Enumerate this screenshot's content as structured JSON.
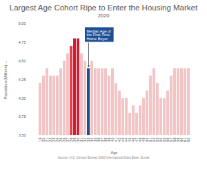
{
  "chart_data": {
    "type": "bar",
    "title": "Largest Age Cohort Ripe to Enter the Housing Market",
    "subtitle": "2020",
    "x_label": "Age",
    "y_label": "Population (Millions)",
    "caption": "Source: U.S. Census Bureau 2020 International Data Base; Zonda",
    "categories": [
      "19",
      "20",
      "21",
      "22",
      "23",
      "24",
      "25",
      "26",
      "27",
      "28",
      "29",
      "30",
      "31",
      "32",
      "33",
      "34",
      "35",
      "36",
      "37",
      "38",
      "39",
      "40",
      "41",
      "42",
      "43",
      "44",
      "45",
      "46",
      "47",
      "48",
      "49",
      "50",
      "51",
      "52",
      "53",
      "54",
      "55",
      "56",
      "57",
      "58",
      "59",
      "60",
      "61",
      "62"
    ],
    "values": [
      4.2,
      4.3,
      4.4,
      4.3,
      4.3,
      4.3,
      4.4,
      4.5,
      4.6,
      4.7,
      4.8,
      4.8,
      4.6,
      4.5,
      4.4,
      4.5,
      4.4,
      4.4,
      4.4,
      4.4,
      4.3,
      4.4,
      4.2,
      4.1,
      4.0,
      4.0,
      3.8,
      3.9,
      3.8,
      3.9,
      4.0,
      4.1,
      4.3,
      4.4,
      4.2,
      4.0,
      4.0,
      4.1,
      4.3,
      4.4,
      4.4,
      4.4,
      4.4,
      4.4
    ],
    "colors": [
      "#f2c4c6",
      "#f2c4c6",
      "#f2c4c6",
      "#f2c4c6",
      "#f2c4c6",
      "#f2c4c6",
      "#f2c4c6",
      "#f2c4c6",
      "#f2c4c6",
      "#e0414f",
      "#cc1f33",
      "#cc1f33",
      "#f2c4c6",
      "#f2c4c6",
      "#1d4f91",
      "#f2c4c6",
      "#f2c4c6",
      "#f2c4c6",
      "#f2c4c6",
      "#f2c4c6",
      "#f2c4c6",
      "#f2c4c6",
      "#f2c4c6",
      "#f2c4c6",
      "#f2c4c6",
      "#f2c4c6",
      "#f2c4c6",
      "#f2c4c6",
      "#f2c4c6",
      "#f2c4c6",
      "#f2c4c6",
      "#f2c4c6",
      "#f2c4c6",
      "#f2c4c6",
      "#f2c4c6",
      "#f2c4c6",
      "#f2c4c6",
      "#f2c4c6",
      "#f2c4c6",
      "#f2c4c6",
      "#f2c4c6",
      "#f2c4c6",
      "#f2c4c6",
      "#f2c4c6"
    ],
    "ylim": [
      3.5,
      5.0
    ],
    "yticks": [
      {
        "value": 3.5,
        "label": "3.50"
      },
      {
        "value": 3.75,
        "label": "3.75"
      },
      {
        "value": 4.0,
        "label": "4.00"
      },
      {
        "value": 4.25,
        "label": "4.25"
      },
      {
        "value": 4.5,
        "label": "4.50"
      },
      {
        "value": 4.75,
        "label": "4.75"
      },
      {
        "value": 5.0,
        "label": "5.00"
      }
    ],
    "grid": false,
    "annotation": {
      "text": "Median Age of the First-Time Home Buyer",
      "category": "33",
      "color": "#1d4f91"
    }
  }
}
